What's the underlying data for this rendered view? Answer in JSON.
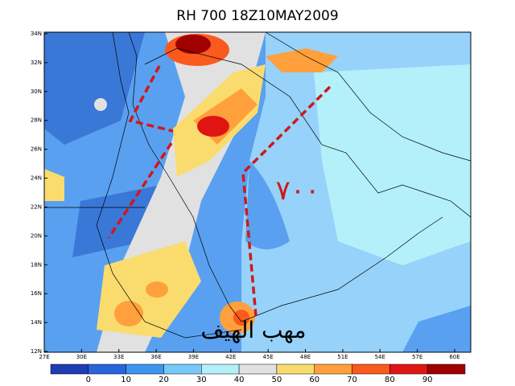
{
  "title": "RH 700 18Z10MAY2009",
  "map": {
    "lat_labels": [
      "34N",
      "32N",
      "30N",
      "28N",
      "26N",
      "24N",
      "22N",
      "20N",
      "18N",
      "16N",
      "14N",
      "12N"
    ],
    "lon_labels": [
      "27E",
      "30E",
      "33E",
      "36E",
      "39E",
      "42E",
      "45E",
      "48E",
      "51E",
      "54E",
      "57E",
      "60E"
    ],
    "annotations": [
      "٧٠٠",
      "مهب الهيف"
    ]
  },
  "colorbar": {
    "ticks": [
      0,
      10,
      20,
      30,
      40,
      50,
      60,
      70,
      80,
      90
    ]
  }
}
